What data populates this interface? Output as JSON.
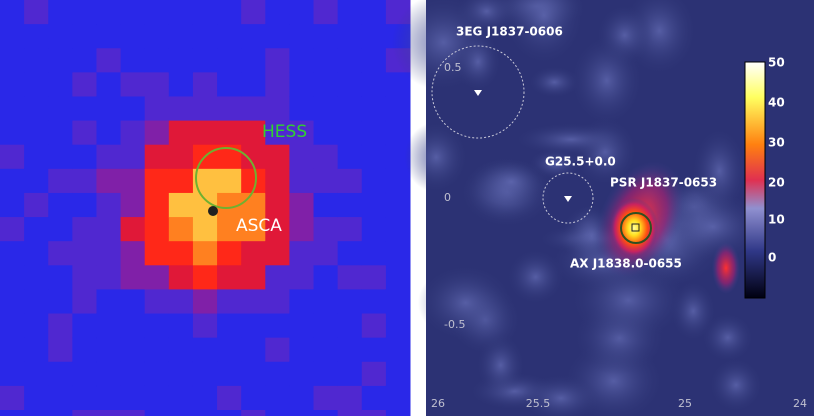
{
  "left_panel": {
    "labels": [
      "HESS",
      "ASCA"
    ]
  },
  "right_panel": {
    "labels": [
      "3EG J1837-0606",
      "G25.5+0.0",
      "PSR J1837-0653",
      "AX J1838.0-0655"
    ],
    "y_ticks": [
      0.5,
      0,
      -0.5
    ],
    "x_ticks": [
      26,
      25.5,
      25,
      24
    ],
    "colorbar_ticks": [
      50,
      40,
      30,
      20,
      10,
      0
    ]
  }
}
